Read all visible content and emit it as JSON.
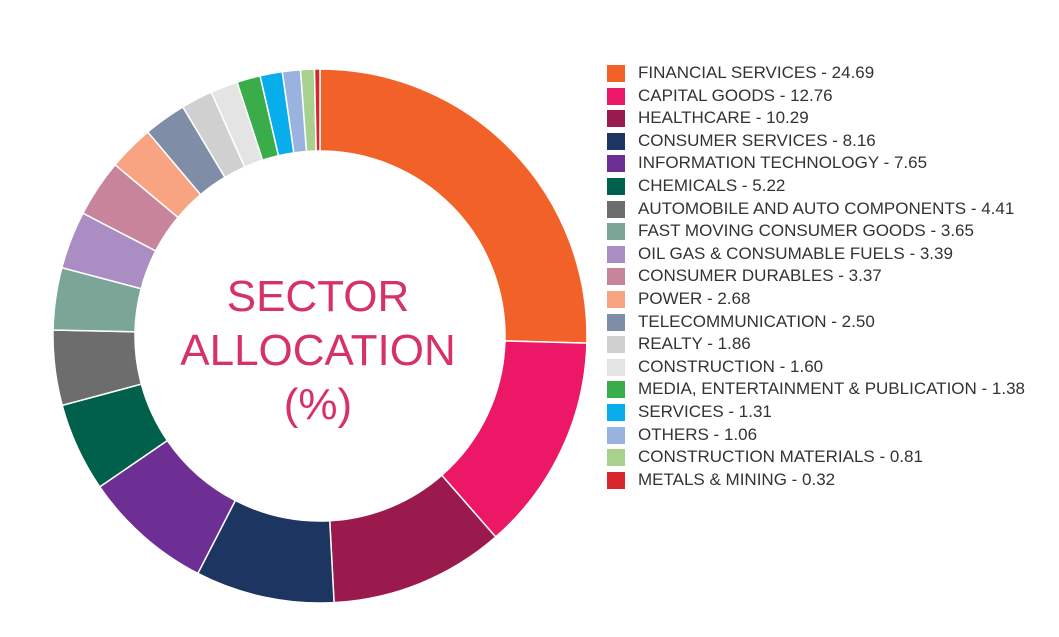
{
  "chart_data": {
    "type": "donut",
    "title": "SECTOR ALLOCATION (%)",
    "title_lines": [
      "SECTOR",
      "ALLOCATION",
      "(%)"
    ],
    "legend_position": "right",
    "series": [
      {
        "name": "FINANCIAL SERVICES",
        "value": 24.69,
        "label": "FINANCIAL SERVICES - 24.69",
        "color": "#f26127"
      },
      {
        "name": "CAPITAL GOODS",
        "value": 12.76,
        "label": "CAPITAL GOODS - 12.76",
        "color": "#ec1766"
      },
      {
        "name": "HEALTHCARE",
        "value": 10.29,
        "label": "HEALTHCARE - 10.29",
        "color": "#9b1a4e"
      },
      {
        "name": "CONSUMER SERVICES",
        "value": 8.16,
        "label": "CONSUMER SERVICES - 8.16",
        "color": "#1c3661"
      },
      {
        "name": "INFORMATION TECHNOLOGY",
        "value": 7.65,
        "label": "INFORMATION TECHNOLOGY - 7.65",
        "color": "#6e2f94"
      },
      {
        "name": "CHEMICALS",
        "value": 5.22,
        "label": "CHEMICALS - 5.22",
        "color": "#00604b"
      },
      {
        "name": "AUTOMOBILE AND AUTO COMPONENTS",
        "value": 4.41,
        "label": "AUTOMOBILE AND AUTO COMPONENTS - 4.41",
        "color": "#6d6d6d"
      },
      {
        "name": "FAST MOVING CONSUMER GOODS",
        "value": 3.65,
        "label": "FAST MOVING CONSUMER GOODS - 3.65",
        "color": "#7aa597"
      },
      {
        "name": "OIL GAS & CONSUMABLE FUELS",
        "value": 3.39,
        "label": "OIL GAS & CONSUMABLE FUELS - 3.39",
        "color": "#a98dc3"
      },
      {
        "name": "CONSUMER DURABLES",
        "value": 3.37,
        "label": "CONSUMER DURABLES - 3.37",
        "color": "#c7849b"
      },
      {
        "name": "POWER",
        "value": 2.68,
        "label": "POWER - 2.68",
        "color": "#f8a382"
      },
      {
        "name": "TELECOMMUNICATION",
        "value": 2.5,
        "label": "TELECOMMUNICATION - 2.50",
        "color": "#7f8ea6"
      },
      {
        "name": "REALTY",
        "value": 1.86,
        "label": "REALTY - 1.86",
        "color": "#d0d0d0"
      },
      {
        "name": "CONSTRUCTION",
        "value": 1.6,
        "label": "CONSTRUCTION - 1.60",
        "color": "#e4e4e4"
      },
      {
        "name": "MEDIA, ENTERTAINMENT & PUBLICATION",
        "value": 1.38,
        "label": "MEDIA, ENTERTAINMENT & PUBLICATION - 1.38",
        "color": "#3aac4a"
      },
      {
        "name": "SERVICES",
        "value": 1.31,
        "label": "SERVICES - 1.31",
        "color": "#08aeeb"
      },
      {
        "name": "OTHERS",
        "value": 1.06,
        "label": "OTHERS - 1.06",
        "color": "#99b2e0"
      },
      {
        "name": "CONSTRUCTION MATERIALS",
        "value": 0.81,
        "label": "CONSTRUCTION MATERIALS - 0.81",
        "color": "#a9d18e"
      },
      {
        "name": "METALS & MINING",
        "value": 0.32,
        "label": "METALS & MINING - 0.32",
        "color": "#d7262c"
      }
    ]
  }
}
